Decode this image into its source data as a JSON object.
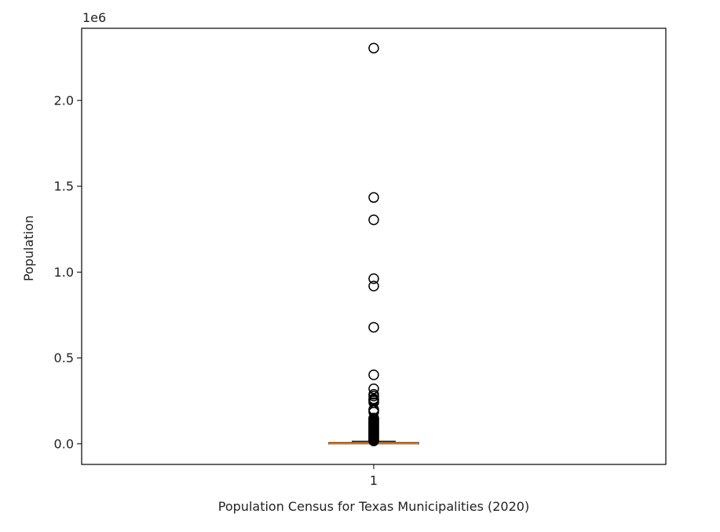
{
  "chart_data": {
    "type": "box",
    "title": "",
    "xlabel": "Population Census for Texas Municipalities (2020)",
    "ylabel": "Population",
    "y_offset_label": "1e6",
    "y_scale_factor": 1000000,
    "ylim": [
      -120000,
      2420000
    ],
    "y_ticks": [
      0.0,
      0.5,
      1.0,
      1.5,
      2.0
    ],
    "y_tick_labels": [
      "0.0",
      "0.5",
      "1.0",
      "1.5",
      "2.0"
    ],
    "x_tick_labels": [
      "1"
    ],
    "grid": false,
    "colors": {
      "box": "#000000",
      "median": "#ff7f0e",
      "flier": "#000000"
    },
    "box": {
      "min": 0,
      "q1": 600,
      "median": 1500,
      "q3": 6500,
      "max": 15000
    },
    "outliers": [
      2304580,
      1434625,
      1304379,
      961855,
      918915,
      678815,
      401661,
      320434,
      288253,
      278022,
      261900,
      256684,
      250000,
      240000,
      200000,
      195000,
      185000,
      150000,
      148000,
      140000,
      135000,
      130000,
      125000,
      120000,
      115000,
      110000,
      105000,
      100000,
      95000,
      90000,
      85000,
      80000,
      75000,
      70000,
      65000,
      60000,
      55000,
      50000,
      45000,
      40000,
      35000,
      30000,
      25000,
      20000,
      17000
    ]
  }
}
